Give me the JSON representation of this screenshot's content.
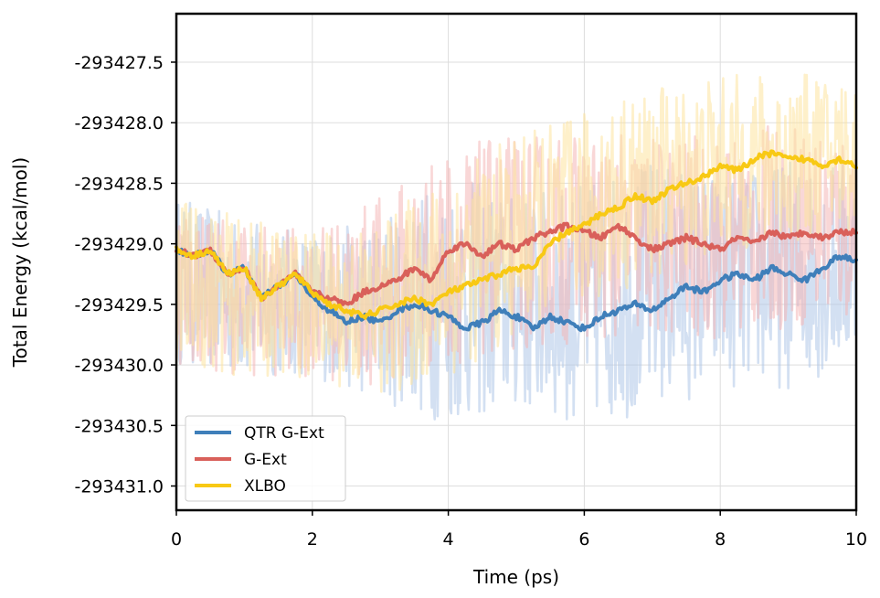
{
  "chart_data": {
    "type": "line",
    "title": "",
    "xlabel": "Time (ps)",
    "ylabel": "Total Energy (kcal/mol)",
    "xlim": [
      0,
      10
    ],
    "ylim": [
      -293431.2,
      -293427.1
    ],
    "grid": true,
    "legend_position": "bottom-left",
    "x_ticks": [
      0,
      2,
      4,
      6,
      8,
      10
    ],
    "x_tick_labels": [
      "0",
      "2",
      "4",
      "6",
      "8",
      "10"
    ],
    "y_ticks": [
      -293427.5,
      -293428.0,
      -293428.5,
      -293429.0,
      -293429.5,
      -293430.0,
      -293430.5,
      -293431.0
    ],
    "y_tick_labels": [
      "-293427.5",
      "-293428.0",
      "-293428.5",
      "-293429.0",
      "-293429.5",
      "-293430.0",
      "-293430.5",
      "-293431.0"
    ],
    "raw_noise_bands": [
      {
        "name": "QTR G-Ext (raw)",
        "color": "#aec7e8",
        "upper": [
          -293428.6,
          -293428.8,
          -293428.9,
          -293428.8,
          -293428.4,
          -293428.6,
          -293428.5,
          -293428.3,
          -293428.4,
          -293428.3,
          -293428.3
        ],
        "lower": [
          -293430.0,
          -293430.1,
          -293430.1,
          -293430.3,
          -293430.5,
          -293430.4,
          -293430.5,
          -293430.4,
          -293430.2,
          -293430.2,
          -293430.0
        ]
      },
      {
        "name": "G-Ext (raw)",
        "color": "#f4b6b6",
        "upper": [
          -293428.6,
          -293428.8,
          -293428.9,
          -293428.6,
          -293428.2,
          -293428.1,
          -293428.1,
          -293428.1,
          -293428.1,
          -293428.0,
          -293428.0
        ],
        "lower": [
          -293430.0,
          -293430.1,
          -293430.1,
          -293430.2,
          -293430.0,
          -293429.9,
          -293429.8,
          -293429.8,
          -293429.8,
          -293429.7,
          -293429.7
        ]
      },
      {
        "name": "XLBO (raw)",
        "color": "#fde49e",
        "upper": [
          -293428.6,
          -293428.8,
          -293428.9,
          -293428.8,
          -293428.4,
          -293428.1,
          -293427.9,
          -293427.7,
          -293427.6,
          -293427.6,
          -293427.6
        ],
        "lower": [
          -293430.0,
          -293430.1,
          -293430.1,
          -293430.3,
          -293430.1,
          -293429.8,
          -293429.5,
          -293429.3,
          -293429.1,
          -293429.0,
          -293428.9
        ]
      }
    ],
    "series": [
      {
        "name": "QTR G-Ext",
        "color": "#3f7fba",
        "x": [
          0,
          0.25,
          0.5,
          0.75,
          1.0,
          1.25,
          1.5,
          1.75,
          2.0,
          2.25,
          2.5,
          2.75,
          3.0,
          3.25,
          3.5,
          3.75,
          4.0,
          4.25,
          4.5,
          4.75,
          5.0,
          5.25,
          5.5,
          5.75,
          6.0,
          6.25,
          6.5,
          6.75,
          7.0,
          7.25,
          7.5,
          7.75,
          8.0,
          8.25,
          8.5,
          8.75,
          9.0,
          9.25,
          9.5,
          9.75,
          10.0
        ],
        "y": [
          -293429.05,
          -293429.1,
          -293429.05,
          -293429.25,
          -293429.2,
          -293429.45,
          -293429.35,
          -293429.25,
          -293429.45,
          -293429.55,
          -293429.65,
          -293429.6,
          -293429.65,
          -293429.55,
          -293429.5,
          -293429.55,
          -293429.6,
          -293429.7,
          -293429.65,
          -293429.55,
          -293429.6,
          -293429.7,
          -293429.6,
          -293429.65,
          -293429.7,
          -293429.6,
          -293429.55,
          -293429.5,
          -293429.55,
          -293429.45,
          -293429.35,
          -293429.4,
          -293429.3,
          -293429.25,
          -293429.3,
          -293429.2,
          -293429.25,
          -293429.3,
          -293429.2,
          -293429.1,
          -293429.15
        ]
      },
      {
        "name": "G-Ext",
        "color": "#d9605a",
        "x": [
          0,
          0.25,
          0.5,
          0.75,
          1.0,
          1.25,
          1.5,
          1.75,
          2.0,
          2.25,
          2.5,
          2.75,
          3.0,
          3.25,
          3.5,
          3.75,
          4.0,
          4.25,
          4.5,
          4.75,
          5.0,
          5.25,
          5.5,
          5.75,
          6.0,
          6.25,
          6.5,
          6.75,
          7.0,
          7.25,
          7.5,
          7.75,
          8.0,
          8.25,
          8.5,
          8.75,
          9.0,
          9.25,
          9.5,
          9.75,
          10.0
        ],
        "y": [
          -293429.05,
          -293429.1,
          -293429.05,
          -293429.25,
          -293429.2,
          -293429.45,
          -293429.35,
          -293429.25,
          -293429.4,
          -293429.45,
          -293429.5,
          -293429.4,
          -293429.35,
          -293429.3,
          -293429.2,
          -293429.3,
          -293429.05,
          -293429.0,
          -293429.1,
          -293429.0,
          -293429.05,
          -293428.95,
          -293428.9,
          -293428.85,
          -293428.9,
          -293428.95,
          -293428.85,
          -293428.95,
          -293429.05,
          -293429.0,
          -293428.95,
          -293429.0,
          -293429.05,
          -293428.95,
          -293429.0,
          -293428.9,
          -293428.95,
          -293428.9,
          -293428.95,
          -293428.9,
          -293428.9
        ]
      },
      {
        "name": "XLBO",
        "color": "#f8c914",
        "x": [
          0,
          0.25,
          0.5,
          0.75,
          1.0,
          1.25,
          1.5,
          1.75,
          2.0,
          2.25,
          2.5,
          2.75,
          3.0,
          3.25,
          3.5,
          3.75,
          4.0,
          4.25,
          4.5,
          4.75,
          5.0,
          5.25,
          5.5,
          5.75,
          6.0,
          6.25,
          6.5,
          6.75,
          7.0,
          7.25,
          7.5,
          7.75,
          8.0,
          8.25,
          8.5,
          8.75,
          9.0,
          9.25,
          9.5,
          9.75,
          10.0
        ],
        "y": [
          -293429.05,
          -293429.1,
          -293429.05,
          -293429.25,
          -293429.2,
          -293429.45,
          -293429.35,
          -293429.25,
          -293429.4,
          -293429.5,
          -293429.55,
          -293429.6,
          -293429.55,
          -293429.5,
          -293429.45,
          -293429.5,
          -293429.4,
          -293429.35,
          -293429.3,
          -293429.25,
          -293429.2,
          -293429.2,
          -293429.0,
          -293428.9,
          -293428.85,
          -293428.75,
          -293428.7,
          -293428.6,
          -293428.65,
          -293428.55,
          -293428.5,
          -293428.45,
          -293428.35,
          -293428.4,
          -293428.3,
          -293428.25,
          -293428.3,
          -293428.3,
          -293428.35,
          -293428.3,
          -293428.35
        ]
      }
    ],
    "legend": [
      "QTR G-Ext",
      "G-Ext",
      "XLBO"
    ]
  }
}
